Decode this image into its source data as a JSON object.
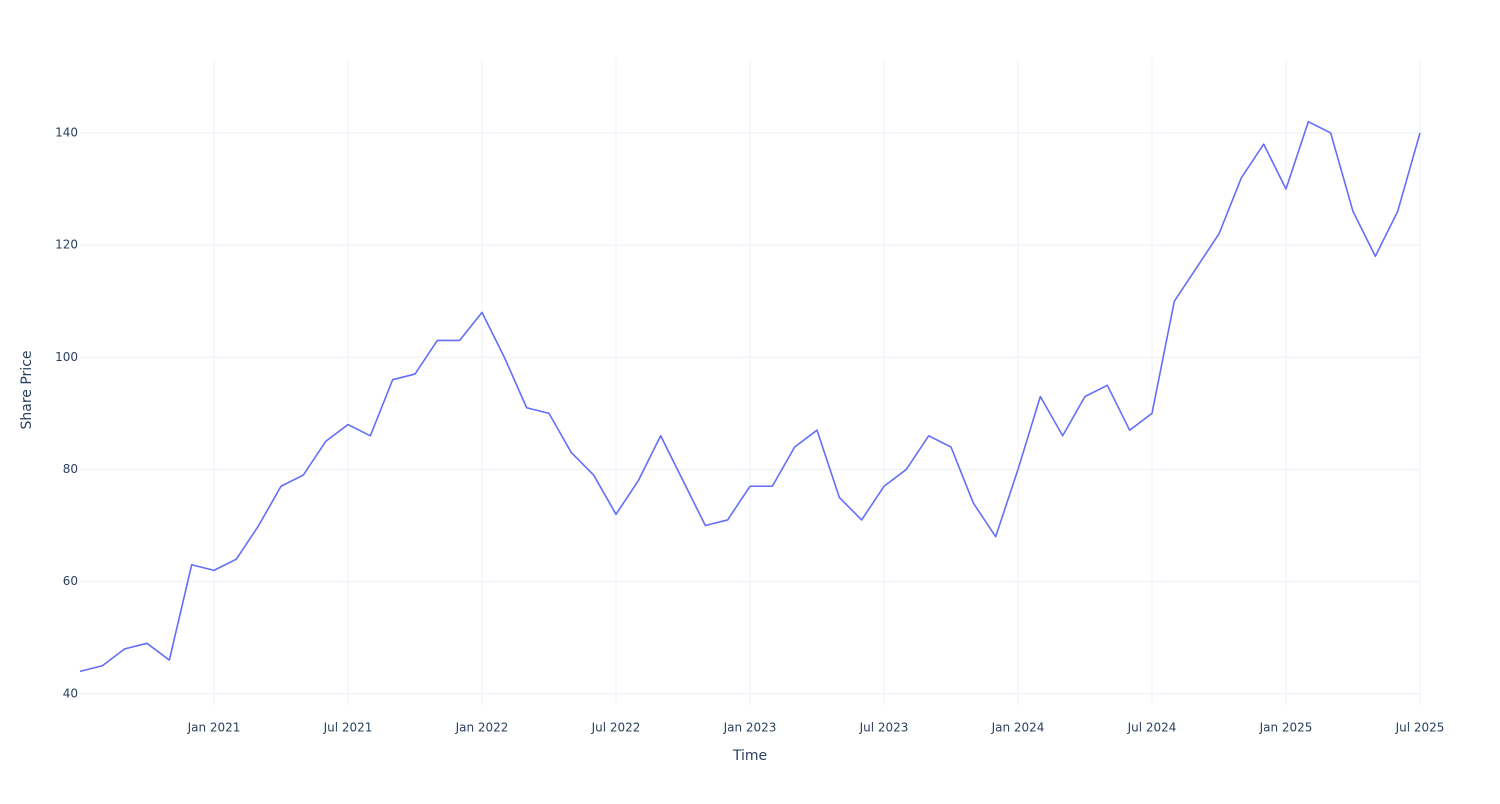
{
  "chart_data": {
    "type": "line",
    "x_label": "Time",
    "y_label": "Share Price",
    "x": [
      "2020-07",
      "2020-08",
      "2020-09",
      "2020-10",
      "2020-11",
      "2020-12",
      "2021-01",
      "2021-02",
      "2021-03",
      "2021-04",
      "2021-05",
      "2021-06",
      "2021-07",
      "2021-08",
      "2021-09",
      "2021-10",
      "2021-11",
      "2021-12",
      "2022-01",
      "2022-02",
      "2022-03",
      "2022-04",
      "2022-05",
      "2022-06",
      "2022-07",
      "2022-08",
      "2022-09",
      "2022-10",
      "2022-11",
      "2022-12",
      "2023-01",
      "2023-02",
      "2023-03",
      "2023-04",
      "2023-05",
      "2023-06",
      "2023-07",
      "2023-08",
      "2023-09",
      "2023-10",
      "2023-11",
      "2023-12",
      "2024-01",
      "2024-02",
      "2024-03",
      "2024-04",
      "2024-05",
      "2024-06",
      "2024-07",
      "2024-08",
      "2024-09",
      "2024-10",
      "2024-11",
      "2024-12",
      "2025-01",
      "2025-02",
      "2025-03",
      "2025-04",
      "2025-05",
      "2025-06",
      "2025-07"
    ],
    "series": [
      {
        "name": "Share Price",
        "color": "#636efa",
        "values": [
          44,
          45,
          48,
          49,
          46,
          63,
          62,
          64,
          70,
          77,
          79,
          85,
          88,
          86,
          96,
          97,
          103,
          103,
          108,
          100,
          91,
          90,
          83,
          79,
          72,
          78,
          86,
          78,
          70,
          71,
          77,
          77,
          84,
          87,
          75,
          71,
          77,
          80,
          86,
          84,
          74,
          68,
          80,
          93,
          86,
          93,
          95,
          87,
          90,
          110,
          116,
          122,
          132,
          138,
          130,
          142,
          140,
          126,
          118,
          126,
          140
        ]
      }
    ],
    "xlim": [
      "2020-07",
      "2025-07"
    ],
    "xticks": [
      {
        "value": "2021-01",
        "label": "Jan 2021"
      },
      {
        "value": "2021-07",
        "label": "Jul 2021"
      },
      {
        "value": "2022-01",
        "label": "Jan 2022"
      },
      {
        "value": "2022-07",
        "label": "Jul 2022"
      },
      {
        "value": "2023-01",
        "label": "Jan 2023"
      },
      {
        "value": "2023-07",
        "label": "Jul 2023"
      },
      {
        "value": "2024-01",
        "label": "Jan 2024"
      },
      {
        "value": "2024-07",
        "label": "Jul 2024"
      },
      {
        "value": "2025-01",
        "label": "Jan 2025"
      },
      {
        "value": "2025-07",
        "label": "Jul 2025"
      }
    ],
    "ylim": [
      38,
      153
    ],
    "yticks": [
      40,
      60,
      80,
      100,
      120,
      140
    ],
    "grid": true
  }
}
